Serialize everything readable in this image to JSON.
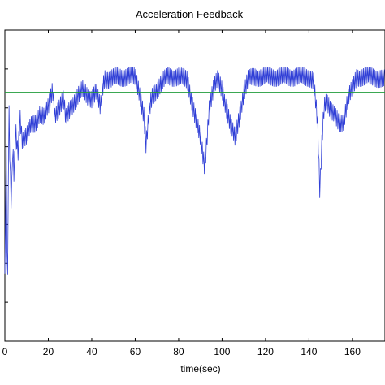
{
  "chart_data": {
    "type": "line",
    "title": "Acceleration Feedback",
    "xlabel": "time(sec)",
    "ylabel": "",
    "xlim": [
      0,
      175
    ],
    "ylim": [
      -1,
      1
    ],
    "grid": false,
    "x_ticks": [
      0,
      20,
      40,
      60,
      80,
      100,
      120,
      140,
      160
    ],
    "x_tick_labels": [
      "0",
      "20",
      "40",
      "60",
      "80",
      "100",
      "120",
      "140",
      "160"
    ],
    "y_ticks_count": 8,
    "reference_value": 0.6,
    "series": [
      {
        "color": "#2f3ed6",
        "points": [
          [
            0,
            -0.6
          ],
          [
            0.6,
            0.3
          ],
          [
            1.2,
            -0.8
          ],
          [
            1.8,
            0.55
          ],
          [
            2.4,
            0.1
          ],
          [
            3,
            -0.15
          ],
          [
            3.6,
            0.25
          ],
          [
            4.2,
            0.05
          ],
          [
            5,
            0.35
          ],
          [
            6,
            0.2
          ],
          [
            7,
            0.45
          ],
          [
            8,
            0.3
          ],
          [
            10,
            0.32
          ],
          [
            12,
            0.38
          ],
          [
            14,
            0.4
          ],
          [
            16,
            0.47
          ],
          [
            18,
            0.44
          ],
          [
            20,
            0.5
          ],
          [
            22,
            0.62
          ],
          [
            23,
            0.46
          ],
          [
            25,
            0.5
          ],
          [
            27,
            0.55
          ],
          [
            28,
            0.43
          ],
          [
            30,
            0.5
          ],
          [
            33,
            0.56
          ],
          [
            36,
            0.62
          ],
          [
            38,
            0.58
          ],
          [
            40,
            0.56
          ],
          [
            42,
            0.6
          ],
          [
            44,
            0.5
          ],
          [
            45,
            0.63
          ],
          [
            46,
            0.7
          ],
          [
            48,
            0.68
          ],
          [
            52,
            0.7
          ],
          [
            56,
            0.7
          ],
          [
            60,
            0.7
          ],
          [
            62,
            0.6
          ],
          [
            64,
            0.45
          ],
          [
            65,
            0.25
          ],
          [
            66,
            0.4
          ],
          [
            67,
            0.52
          ],
          [
            68,
            0.58
          ],
          [
            70,
            0.62
          ],
          [
            72,
            0.66
          ],
          [
            75,
            0.7
          ],
          [
            80,
            0.7
          ],
          [
            84,
            0.68
          ],
          [
            86,
            0.55
          ],
          [
            88,
            0.42
          ],
          [
            90,
            0.3
          ],
          [
            92,
            0.12
          ],
          [
            93,
            0.3
          ],
          [
            94,
            0.5
          ],
          [
            96,
            0.62
          ],
          [
            98,
            0.68
          ],
          [
            100,
            0.62
          ],
          [
            102,
            0.5
          ],
          [
            104,
            0.38
          ],
          [
            106,
            0.3
          ],
          [
            108,
            0.45
          ],
          [
            110,
            0.6
          ],
          [
            112,
            0.68
          ],
          [
            115,
            0.7
          ],
          [
            120,
            0.7
          ],
          [
            125,
            0.7
          ],
          [
            130,
            0.7
          ],
          [
            135,
            0.7
          ],
          [
            140,
            0.7
          ],
          [
            142,
            0.68
          ],
          [
            143,
            0.55
          ],
          [
            144,
            0.38
          ],
          [
            145,
            -0.05
          ],
          [
            146,
            0.3
          ],
          [
            147,
            0.52
          ],
          [
            148,
            0.56
          ],
          [
            150,
            0.48
          ],
          [
            152,
            0.44
          ],
          [
            154,
            0.4
          ],
          [
            156,
            0.42
          ],
          [
            158,
            0.56
          ],
          [
            160,
            0.62
          ],
          [
            162,
            0.7
          ],
          [
            166,
            0.7
          ],
          [
            170,
            0.7
          ],
          [
            175,
            0.68
          ]
        ]
      },
      {
        "color": "#1f9b3a",
        "points": [
          [
            0,
            0.6
          ],
          [
            175,
            0.6
          ]
        ]
      }
    ]
  }
}
